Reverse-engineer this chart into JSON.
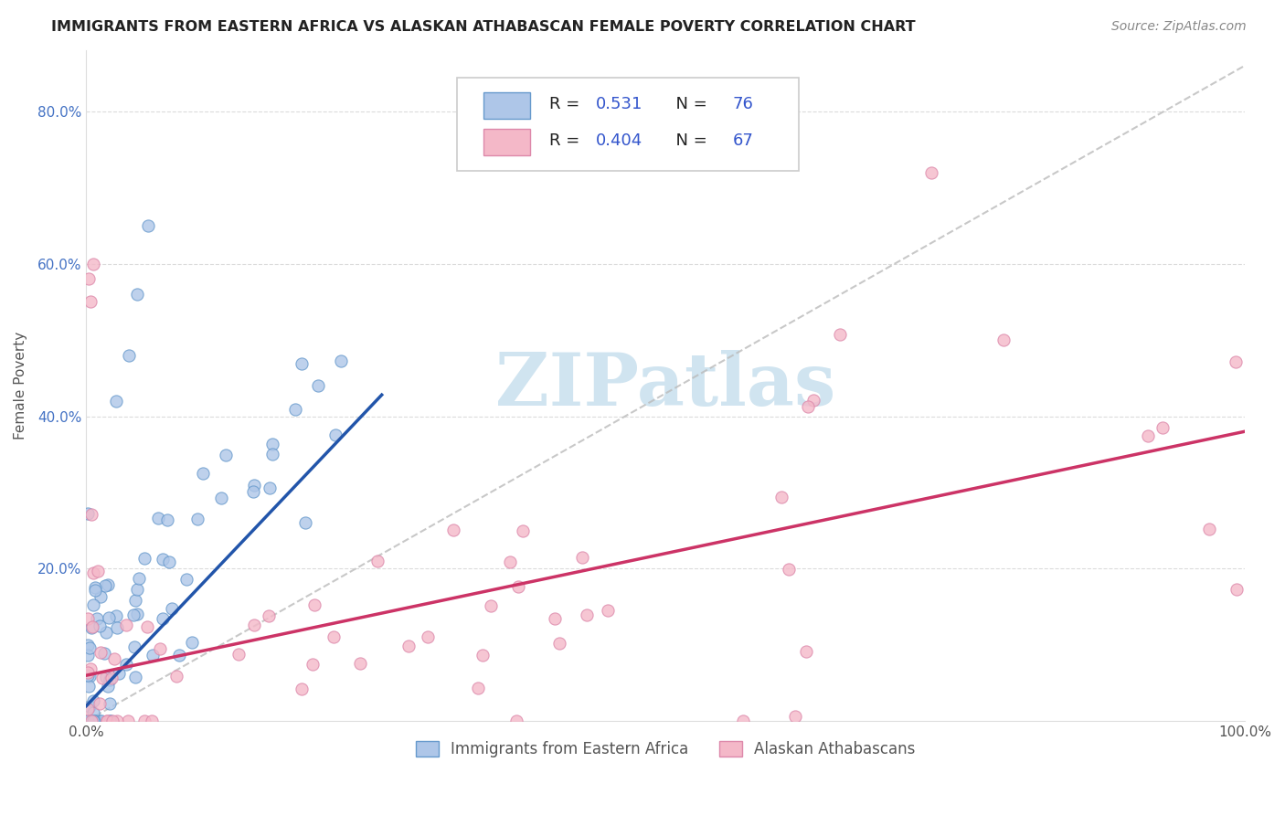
{
  "title": "IMMIGRANTS FROM EASTERN AFRICA VS ALASKAN ATHABASCAN FEMALE POVERTY CORRELATION CHART",
  "source": "Source: ZipAtlas.com",
  "ylabel": "Female Poverty",
  "xlim": [
    0.0,
    1.0
  ],
  "ylim": [
    0.0,
    0.88
  ],
  "series1_color": "#aec6e8",
  "series1_edge": "#6699cc",
  "series1_line_color": "#2255aa",
  "series1_label": "Immigrants from Eastern Africa",
  "series1_R": "0.531",
  "series1_N": "76",
  "series2_color": "#f4b8c8",
  "series2_edge": "#dd88aa",
  "series2_line_color": "#cc3366",
  "series2_label": "Alaskan Athabascans",
  "series2_R": "0.404",
  "series2_N": "67",
  "background_color": "#ffffff",
  "grid_color": "#cccccc",
  "ref_line_color": "#bbbbbb",
  "ytick_color": "#4472c4",
  "label_color": "#555555",
  "title_color": "#222222",
  "source_color": "#888888",
  "watermark_color": "#d0e4f0",
  "legend_text_color": "#222222",
  "legend_value_color": "#3355cc"
}
